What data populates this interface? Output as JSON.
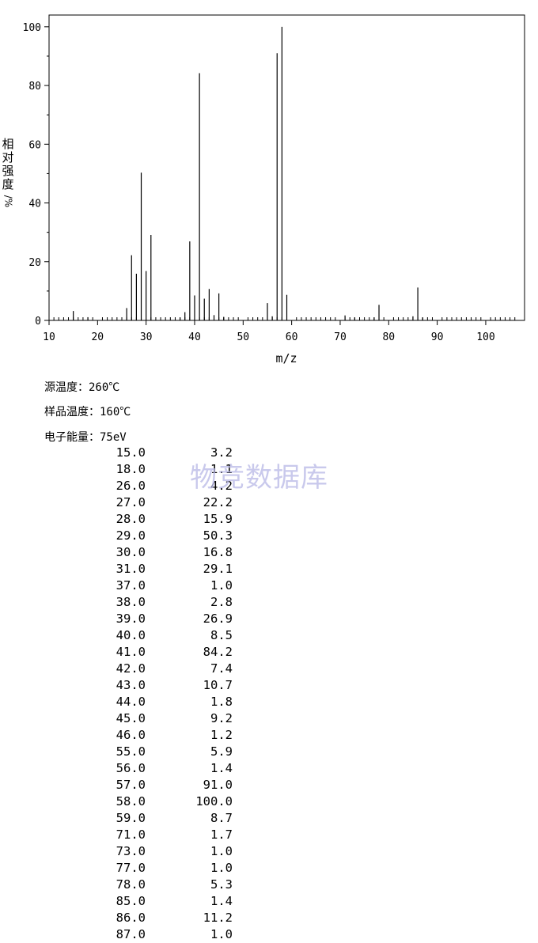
{
  "chart_data": {
    "type": "bar",
    "xlabel": "m/z",
    "ylabel": "相对强度/%",
    "xlim": [
      10,
      108
    ],
    "ylim": [
      0,
      104
    ],
    "xticks": [
      10,
      20,
      30,
      40,
      50,
      60,
      70,
      80,
      90,
      100
    ],
    "yticks": [
      0,
      20,
      40,
      60,
      80,
      100
    ],
    "grid": false,
    "peaks": [
      {
        "x": 15.0,
        "y": 3.2
      },
      {
        "x": 18.0,
        "y": 1.1
      },
      {
        "x": 26.0,
        "y": 4.2
      },
      {
        "x": 27.0,
        "y": 22.2
      },
      {
        "x": 28.0,
        "y": 15.9
      },
      {
        "x": 29.0,
        "y": 50.3
      },
      {
        "x": 30.0,
        "y": 16.8
      },
      {
        "x": 31.0,
        "y": 29.1
      },
      {
        "x": 37.0,
        "y": 1.0
      },
      {
        "x": 38.0,
        "y": 2.8
      },
      {
        "x": 39.0,
        "y": 26.9
      },
      {
        "x": 40.0,
        "y": 8.5
      },
      {
        "x": 41.0,
        "y": 84.2
      },
      {
        "x": 42.0,
        "y": 7.4
      },
      {
        "x": 43.0,
        "y": 10.7
      },
      {
        "x": 44.0,
        "y": 1.8
      },
      {
        "x": 45.0,
        "y": 9.2
      },
      {
        "x": 46.0,
        "y": 1.2
      },
      {
        "x": 55.0,
        "y": 5.9
      },
      {
        "x": 56.0,
        "y": 1.4
      },
      {
        "x": 57.0,
        "y": 91.0
      },
      {
        "x": 58.0,
        "y": 100.0
      },
      {
        "x": 59.0,
        "y": 8.7
      },
      {
        "x": 71.0,
        "y": 1.7
      },
      {
        "x": 73.0,
        "y": 1.0
      },
      {
        "x": 77.0,
        "y": 1.0
      },
      {
        "x": 78.0,
        "y": 5.3
      },
      {
        "x": 85.0,
        "y": 1.4
      },
      {
        "x": 86.0,
        "y": 11.2
      },
      {
        "x": 87.0,
        "y": 1.0
      }
    ]
  },
  "ylabel_chars": [
    "相",
    "对",
    "强",
    "度",
    "/%"
  ],
  "meta": {
    "source_temp": "源温度：260℃",
    "sample_temp": "样品温度：160℃",
    "electron_energy": "电子能量：75eV"
  },
  "table": [
    [
      "15.0",
      "3.2"
    ],
    [
      "18.0",
      "1.1"
    ],
    [
      "26.0",
      "4.2"
    ],
    [
      "27.0",
      "22.2"
    ],
    [
      "28.0",
      "15.9"
    ],
    [
      "29.0",
      "50.3"
    ],
    [
      "30.0",
      "16.8"
    ],
    [
      "31.0",
      "29.1"
    ],
    [
      "37.0",
      "1.0"
    ],
    [
      "38.0",
      "2.8"
    ],
    [
      "39.0",
      "26.9"
    ],
    [
      "40.0",
      "8.5"
    ],
    [
      "41.0",
      "84.2"
    ],
    [
      "42.0",
      "7.4"
    ],
    [
      "43.0",
      "10.7"
    ],
    [
      "44.0",
      "1.8"
    ],
    [
      "45.0",
      "9.2"
    ],
    [
      "46.0",
      "1.2"
    ],
    [
      "55.0",
      "5.9"
    ],
    [
      "56.0",
      "1.4"
    ],
    [
      "57.0",
      "91.0"
    ],
    [
      "58.0",
      "100.0"
    ],
    [
      "59.0",
      "8.7"
    ],
    [
      "71.0",
      "1.7"
    ],
    [
      "73.0",
      "1.0"
    ],
    [
      "77.0",
      "1.0"
    ],
    [
      "78.0",
      "5.3"
    ],
    [
      "85.0",
      "1.4"
    ],
    [
      "86.0",
      "11.2"
    ],
    [
      "87.0",
      "1.0"
    ]
  ],
  "watermark": "物竞数据库"
}
